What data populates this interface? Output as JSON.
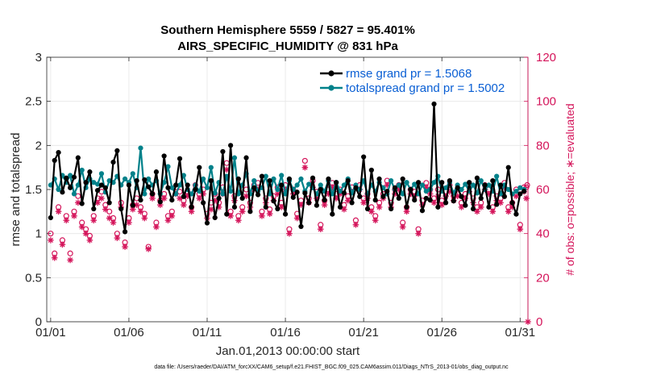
{
  "chart_data": {
    "type": "line",
    "title": "Southern Hemisphere 5559 / 5827 = 95.401%",
    "subtitle": "AIRS_SPECIFIC_HUMIDITY @ 831 hPa",
    "xlabel": "Jan.01,2013 00:00:00 start",
    "ylabel": "rmse and totalspread",
    "ylabel_right": "# of obs: o=possible; ∗=evaluated",
    "footer": "data file: /Users/raeder/DAI/ATM_forcXX/CAM6_setup/f.e21.FHIST_BGC.f09_025.CAM6assim.011/Diags_NTrS_2013-01/obs_diag_output.nc",
    "xlim": [
      0.75,
      31.5
    ],
    "ylim": [
      0,
      3
    ],
    "ylim_right": [
      0,
      120
    ],
    "xticks": [
      1,
      6,
      11,
      16,
      21,
      26,
      31
    ],
    "xtick_labels": [
      "01/01",
      "01/06",
      "01/11",
      "01/16",
      "01/21",
      "01/26",
      "01/31"
    ],
    "yticks": [
      0,
      0.5,
      1,
      1.5,
      2,
      2.5,
      3
    ],
    "ytick_labels": [
      "0",
      "0.5",
      "1",
      "1.5",
      "2",
      "2.5",
      "3"
    ],
    "yticks_right": [
      0,
      20,
      40,
      60,
      80,
      100,
      120
    ],
    "ytick_labels_right": [
      "0",
      "20",
      "40",
      "60",
      "80",
      "100",
      "120"
    ],
    "grid": true,
    "legend_position": "top-right",
    "x": [
      1,
      1.25,
      1.5,
      1.75,
      2,
      2.25,
      2.5,
      2.75,
      3,
      3.25,
      3.5,
      3.75,
      4,
      4.25,
      4.5,
      4.75,
      5,
      5.25,
      5.5,
      5.75,
      6,
      6.25,
      6.5,
      6.75,
      7,
      7.25,
      7.5,
      7.75,
      8,
      8.25,
      8.5,
      8.75,
      9,
      9.25,
      9.5,
      9.75,
      10,
      10.25,
      10.5,
      10.75,
      11,
      11.25,
      11.5,
      11.75,
      12,
      12.25,
      12.5,
      12.75,
      13,
      13.25,
      13.5,
      13.75,
      14,
      14.25,
      14.5,
      14.75,
      15,
      15.25,
      15.5,
      15.75,
      16,
      16.25,
      16.5,
      16.75,
      17,
      17.25,
      17.5,
      17.75,
      18,
      18.25,
      18.5,
      18.75,
      19,
      19.25,
      19.5,
      19.75,
      20,
      20.25,
      20.5,
      20.75,
      21,
      21.25,
      21.5,
      21.75,
      22,
      22.25,
      22.5,
      22.75,
      23,
      23.25,
      23.5,
      23.75,
      24,
      24.25,
      24.5,
      24.75,
      25,
      25.25,
      25.5,
      25.75,
      26,
      26.25,
      26.5,
      26.75,
      27,
      27.25,
      27.5,
      27.75,
      28,
      28.25,
      28.5,
      28.75,
      29,
      29.25,
      29.5,
      29.75,
      30,
      30.25,
      30.5,
      30.75,
      31,
      31.25
    ],
    "series": [
      {
        "name": "rmse",
        "legend": "rmse grand pr = 1.5068",
        "color": "#000000",
        "values": [
          1.18,
          1.83,
          1.92,
          1.47,
          1.63,
          1.52,
          1.64,
          1.86,
          1.34,
          1.58,
          1.7,
          1.28,
          1.49,
          1.55,
          1.52,
          1.35,
          1.81,
          1.94,
          1.28,
          1.02,
          1.55,
          1.32,
          1.6,
          1.38,
          1.61,
          1.53,
          1.45,
          1.7,
          1.36,
          1.88,
          1.52,
          1.38,
          1.55,
          1.85,
          1.42,
          1.55,
          1.3,
          1.5,
          1.75,
          1.35,
          1.12,
          1.6,
          1.18,
          1.4,
          1.93,
          1.22,
          2.0,
          1.3,
          1.62,
          1.4,
          1.86,
          1.25,
          1.52,
          1.44,
          1.65,
          1.3,
          1.6,
          1.37,
          1.28,
          1.55,
          1.22,
          1.62,
          1.41,
          1.47,
          1.08,
          1.46,
          1.35,
          1.63,
          1.32,
          1.5,
          1.38,
          1.62,
          1.22,
          1.58,
          1.3,
          1.46,
          1.6,
          1.35,
          1.52,
          1.42,
          1.87,
          1.28,
          1.72,
          1.38,
          1.62,
          1.42,
          1.48,
          1.28,
          1.52,
          1.4,
          1.62,
          1.3,
          1.5,
          1.38,
          1.58,
          1.26,
          1.4,
          1.38,
          2.47,
          1.3,
          1.58,
          1.35,
          1.6,
          1.37,
          1.52,
          1.42,
          1.32,
          1.58,
          1.28,
          1.63,
          1.4,
          1.55,
          1.3,
          1.6,
          1.33,
          1.55,
          1.42,
          1.75,
          1.35,
          1.22,
          1.45,
          1.48
        ],
        "marker": "circle"
      },
      {
        "name": "totalspread",
        "legend": "totalspread grand pr = 1.5002",
        "color": "#00818a",
        "values": [
          1.55,
          1.62,
          1.5,
          1.66,
          1.58,
          1.66,
          1.45,
          1.55,
          1.72,
          1.52,
          1.62,
          1.58,
          1.56,
          1.68,
          1.47,
          1.6,
          1.58,
          1.65,
          1.55,
          1.62,
          1.58,
          1.68,
          1.52,
          1.97,
          1.45,
          1.62,
          1.55,
          1.6,
          1.45,
          1.58,
          1.76,
          1.52,
          1.45,
          1.55,
          1.66,
          1.5,
          1.45,
          1.55,
          1.48,
          1.62,
          1.52,
          1.75,
          1.46,
          1.58,
          1.45,
          1.65,
          1.48,
          1.86,
          1.45,
          1.55,
          1.68,
          1.45,
          1.6,
          1.48,
          1.52,
          1.65,
          1.45,
          1.62,
          1.5,
          1.66,
          1.45,
          1.6,
          1.5,
          1.55,
          1.62,
          1.48,
          1.56,
          1.52,
          1.45,
          1.55,
          1.48,
          1.6,
          1.45,
          1.58,
          1.48,
          1.55,
          1.62,
          1.46,
          1.55,
          1.5,
          1.6,
          1.45,
          1.55,
          1.48,
          1.58,
          1.52,
          1.45,
          1.6,
          1.5,
          1.55,
          1.45,
          1.58,
          1.5,
          1.56,
          1.45,
          1.55,
          1.48,
          1.5,
          1.58,
          1.65,
          1.48,
          1.52,
          1.58,
          1.46,
          1.55,
          1.5,
          1.56,
          1.48,
          1.55,
          1.46,
          1.6,
          1.5,
          1.55,
          1.48,
          1.65,
          1.45,
          1.55,
          1.5,
          1.45,
          1.48,
          1.52,
          1.5
        ],
        "marker": "circle"
      },
      {
        "name": "obs possible",
        "axis": "right",
        "color": "#d4145a",
        "marker": "o",
        "values": [
          40,
          31,
          52,
          37,
          48,
          31,
          50,
          57,
          45,
          42,
          39,
          48,
          56,
          59,
          53,
          50,
          47,
          40,
          54,
          36,
          47,
          53,
          56,
          52,
          49,
          34,
          58,
          45,
          55,
          58,
          48,
          50,
          61,
          59,
          55,
          59,
          52,
          62,
          58,
          60,
          49,
          54,
          58,
          54,
          61,
          72,
          50,
          57,
          48,
          52,
          60,
          54,
          62,
          63,
          50,
          56,
          51,
          57,
          61,
          54,
          62,
          42,
          60,
          49,
          55,
          73,
          56,
          64,
          59,
          44,
          55,
          60,
          63,
          58,
          60,
          53,
          57,
          61,
          46,
          62,
          56,
          58,
          52,
          48,
          54,
          58,
          64,
          54,
          60,
          62,
          45,
          52,
          60,
          59,
          42,
          55,
          63,
          60,
          56,
          60,
          55,
          59,
          62,
          57,
          60,
          54,
          58,
          62,
          56,
          52,
          54,
          62,
          60,
          52,
          57,
          56,
          63,
          52,
          54,
          60,
          44,
          61,
          61,
          62
        ],
        "x": [
          1,
          1.25,
          1.5,
          1.75,
          2,
          2.25,
          2.5,
          2.75,
          3,
          3.25,
          3.5,
          3.75,
          4,
          4.25,
          4.5,
          4.75,
          5,
          5.25,
          5.5,
          5.75,
          6,
          6.25,
          6.5,
          6.75,
          7,
          7.25,
          7.5,
          7.75,
          8,
          8.25,
          8.5,
          8.75,
          9,
          9.25,
          9.5,
          9.75,
          10,
          10.25,
          10.5,
          10.75,
          11,
          11.25,
          11.5,
          11.75,
          12,
          12.25,
          12.5,
          12.75,
          13,
          13.25,
          13.5,
          13.75,
          14,
          14.25,
          14.5,
          14.75,
          15,
          15.25,
          15.5,
          15.75,
          16,
          16.25,
          16.5,
          16.75,
          17,
          17.25,
          17.5,
          17.75,
          18,
          18.25,
          18.5,
          18.75,
          19,
          19.25,
          19.5,
          19.75,
          20,
          20.25,
          20.5,
          20.75,
          21,
          21.25,
          21.5,
          21.75,
          22,
          22.25,
          22.5,
          22.75,
          23,
          23.25,
          23.5,
          23.75,
          24,
          24.25,
          24.5,
          24.75,
          25,
          25.25,
          25.5,
          25.75,
          26,
          26.25,
          26.5,
          26.75,
          27,
          27.25,
          27.5,
          27.75,
          28,
          28.25,
          28.5,
          28.75,
          29,
          29.25,
          29.5,
          29.75,
          30,
          30.25,
          30.5,
          30.75,
          31,
          31.25,
          31.4,
          31.45
        ]
      },
      {
        "name": "obs evaluated",
        "axis": "right",
        "color": "#d4145a",
        "marker": "*",
        "values": [
          37,
          29,
          50,
          35,
          46,
          28,
          48,
          54,
          43,
          40,
          37,
          46,
          54,
          56,
          51,
          47,
          45,
          38,
          52,
          34,
          45,
          51,
          53,
          50,
          47,
          33,
          56,
          43,
          53,
          56,
          46,
          48,
          58,
          56,
          53,
          57,
          50,
          60,
          56,
          58,
          47,
          51,
          55,
          52,
          58,
          69,
          48,
          55,
          46,
          50,
          57,
          52,
          60,
          60,
          48,
          54,
          49,
          55,
          58,
          52,
          60,
          40,
          58,
          47,
          53,
          70,
          54,
          61,
          56,
          42,
          53,
          58,
          61,
          56,
          58,
          51,
          55,
          59,
          44,
          60,
          54,
          56,
          50,
          46,
          52,
          56,
          62,
          52,
          58,
          60,
          43,
          50,
          58,
          57,
          40,
          53,
          61,
          58,
          54,
          57,
          53,
          57,
          59,
          55,
          57,
          52,
          56,
          59,
          54,
          50,
          52,
          60,
          58,
          50,
          55,
          54,
          61,
          50,
          52,
          57,
          42,
          59,
          56,
          0
        ],
        "x": [
          1,
          1.25,
          1.5,
          1.75,
          2,
          2.25,
          2.5,
          2.75,
          3,
          3.25,
          3.5,
          3.75,
          4,
          4.25,
          4.5,
          4.75,
          5,
          5.25,
          5.5,
          5.75,
          6,
          6.25,
          6.5,
          6.75,
          7,
          7.25,
          7.5,
          7.75,
          8,
          8.25,
          8.5,
          8.75,
          9,
          9.25,
          9.5,
          9.75,
          10,
          10.25,
          10.5,
          10.75,
          11,
          11.25,
          11.5,
          11.75,
          12,
          12.25,
          12.5,
          12.75,
          13,
          13.25,
          13.5,
          13.75,
          14,
          14.25,
          14.5,
          14.75,
          15,
          15.25,
          15.5,
          15.75,
          16,
          16.25,
          16.5,
          16.75,
          17,
          17.25,
          17.5,
          17.75,
          18,
          18.25,
          18.5,
          18.75,
          19,
          19.25,
          19.5,
          19.75,
          20,
          20.25,
          20.5,
          20.75,
          21,
          21.25,
          21.5,
          21.75,
          22,
          22.25,
          22.5,
          22.75,
          23,
          23.25,
          23.5,
          23.75,
          24,
          24.25,
          24.5,
          24.75,
          25,
          25.25,
          25.5,
          25.75,
          26,
          26.25,
          26.5,
          26.75,
          27,
          27.25,
          27.5,
          27.75,
          28,
          28.25,
          28.5,
          28.75,
          29,
          29.25,
          29.5,
          29.75,
          30,
          30.25,
          30.5,
          30.75,
          31,
          31.25,
          31.4,
          31.5
        ]
      }
    ]
  }
}
